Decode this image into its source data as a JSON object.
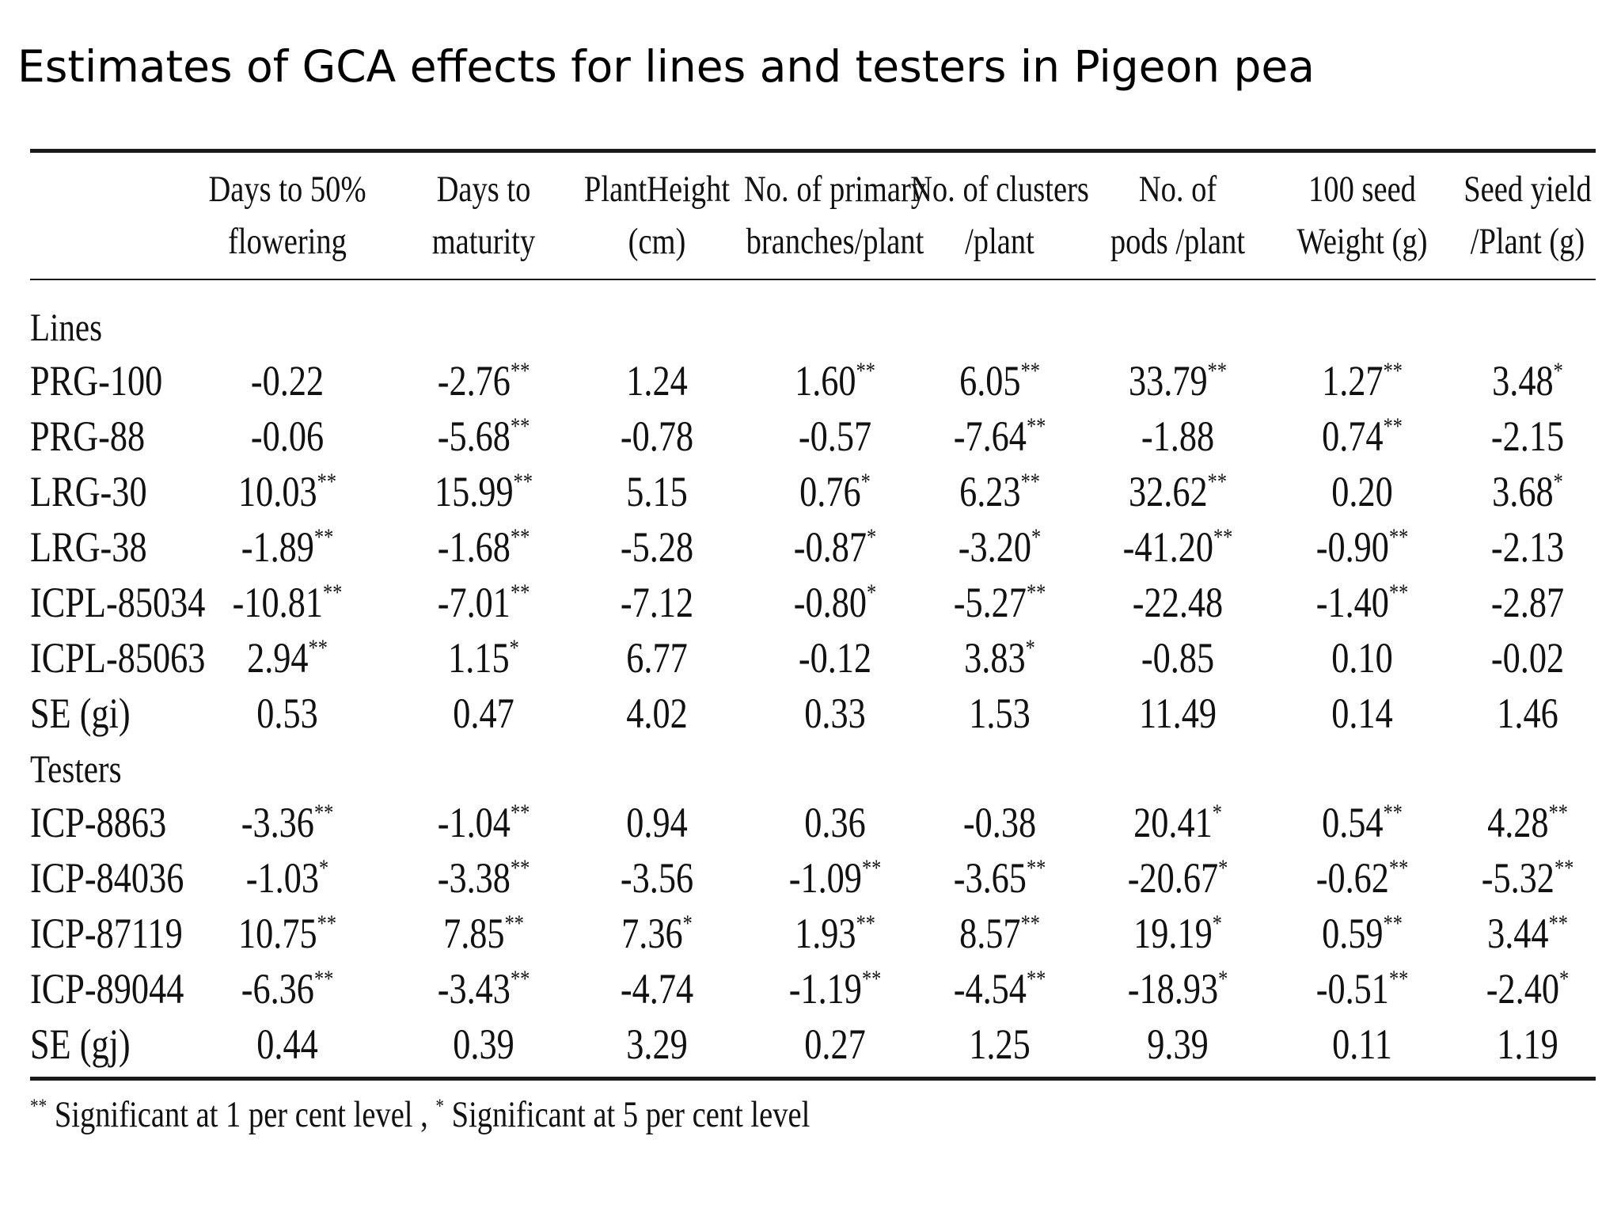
{
  "title": "Estimates of GCA effects for lines and testers in Pigeon pea",
  "table": {
    "headers": [
      [
        "Days to 50%",
        "flowering"
      ],
      [
        "Days to",
        "maturity"
      ],
      [
        "PlantHeight",
        "(cm)"
      ],
      [
        "No. of primary",
        "branches/plant"
      ],
      [
        "No. of clusters",
        "/plant"
      ],
      [
        "No. of",
        "pods /plant"
      ],
      [
        "100  seed",
        "Weight (g)"
      ],
      [
        "Seed  yield",
        "/Plant (g)"
      ]
    ],
    "sections": [
      {
        "label": "Lines",
        "rows": [
          {
            "name": "PRG-100",
            "cells": [
              [
                "-0.22",
                ""
              ],
              [
                "-2.76",
                "**"
              ],
              [
                "1.24",
                ""
              ],
              [
                "1.60",
                "**"
              ],
              [
                "6.05",
                "**"
              ],
              [
                "33.79",
                "**"
              ],
              [
                "1.27",
                "**"
              ],
              [
                "3.48",
                "*"
              ]
            ]
          },
          {
            "name": "PRG-88",
            "cells": [
              [
                "-0.06",
                ""
              ],
              [
                "-5.68",
                "**"
              ],
              [
                "-0.78",
                ""
              ],
              [
                "-0.57",
                ""
              ],
              [
                "-7.64",
                "**"
              ],
              [
                "-1.88",
                ""
              ],
              [
                "0.74",
                "**"
              ],
              [
                "-2.15",
                ""
              ]
            ]
          },
          {
            "name": "LRG-30",
            "cells": [
              [
                "10.03",
                "**"
              ],
              [
                "15.99",
                "**"
              ],
              [
                "5.15",
                ""
              ],
              [
                "0.76",
                "*"
              ],
              [
                "6.23",
                "**"
              ],
              [
                "32.62",
                "**"
              ],
              [
                "0.20",
                ""
              ],
              [
                "3.68",
                "*"
              ]
            ]
          },
          {
            "name": "LRG-38",
            "cells": [
              [
                "-1.89",
                "**"
              ],
              [
                "-1.68",
                "**"
              ],
              [
                "-5.28",
                ""
              ],
              [
                "-0.87",
                "*"
              ],
              [
                "-3.20",
                "*"
              ],
              [
                "-41.20",
                "**"
              ],
              [
                "-0.90",
                "**"
              ],
              [
                "-2.13",
                ""
              ]
            ]
          },
          {
            "name": "ICPL-85034",
            "cells": [
              [
                "-10.81",
                "**"
              ],
              [
                "-7.01",
                "**"
              ],
              [
                "-7.12",
                ""
              ],
              [
                "-0.80",
                "*"
              ],
              [
                "-5.27",
                "**"
              ],
              [
                "-22.48",
                ""
              ],
              [
                "-1.40",
                "**"
              ],
              [
                "-2.87",
                ""
              ]
            ]
          },
          {
            "name": "ICPL-85063",
            "cells": [
              [
                "2.94",
                "**"
              ],
              [
                "1.15",
                "*"
              ],
              [
                "6.77",
                ""
              ],
              [
                "-0.12",
                ""
              ],
              [
                "3.83",
                "*"
              ],
              [
                "-0.85",
                ""
              ],
              [
                "0.10",
                ""
              ],
              [
                "-0.02",
                ""
              ]
            ]
          },
          {
            "name": "SE (gi)",
            "cells": [
              [
                "0.53",
                ""
              ],
              [
                "0.47",
                ""
              ],
              [
                "4.02",
                ""
              ],
              [
                "0.33",
                ""
              ],
              [
                "1.53",
                ""
              ],
              [
                "11.49",
                ""
              ],
              [
                "0.14",
                ""
              ],
              [
                "1.46",
                ""
              ]
            ]
          }
        ]
      },
      {
        "label": "Testers",
        "rows": [
          {
            "name": "ICP-8863",
            "cells": [
              [
                "-3.36",
                "**"
              ],
              [
                "-1.04",
                "**"
              ],
              [
                "0.94",
                ""
              ],
              [
                "0.36",
                ""
              ],
              [
                "-0.38",
                ""
              ],
              [
                "20.41",
                "*"
              ],
              [
                "0.54",
                "**"
              ],
              [
                "4.28",
                "**"
              ]
            ]
          },
          {
            "name": "ICP-84036",
            "cells": [
              [
                "-1.03",
                "*"
              ],
              [
                "-3.38",
                "**"
              ],
              [
                "-3.56",
                ""
              ],
              [
                "-1.09",
                "**"
              ],
              [
                "-3.65",
                "**"
              ],
              [
                "-20.67",
                "*"
              ],
              [
                "-0.62",
                "**"
              ],
              [
                "-5.32",
                "**"
              ]
            ]
          },
          {
            "name": "ICP-87119",
            "cells": [
              [
                "10.75",
                "**"
              ],
              [
                "7.85",
                "**"
              ],
              [
                "7.36",
                "*"
              ],
              [
                "1.93",
                "**"
              ],
              [
                "8.57",
                "**"
              ],
              [
                "19.19",
                "*"
              ],
              [
                "0.59",
                "**"
              ],
              [
                "3.44",
                "**"
              ]
            ]
          },
          {
            "name": "ICP-89044",
            "cells": [
              [
                "-6.36",
                "**"
              ],
              [
                "-3.43",
                "**"
              ],
              [
                "-4.74",
                ""
              ],
              [
                "-1.19",
                "**"
              ],
              [
                "-4.54",
                "**"
              ],
              [
                "-18.93",
                "*"
              ],
              [
                "-0.51",
                "**"
              ],
              [
                "-2.40",
                "*"
              ]
            ]
          },
          {
            "name": "SE (gj)",
            "cells": [
              [
                "0.44",
                ""
              ],
              [
                "0.39",
                ""
              ],
              [
                "3.29",
                ""
              ],
              [
                "0.27",
                ""
              ],
              [
                "1.25",
                ""
              ],
              [
                "9.39",
                ""
              ],
              [
                "0.11",
                ""
              ],
              [
                "1.19",
                ""
              ]
            ]
          }
        ]
      }
    ],
    "footnote": {
      "mark1": "**",
      "text1": " Significant at 1 per cent level , ",
      "mark2": "*",
      "text2": "  Significant at 5 per cent level"
    }
  }
}
